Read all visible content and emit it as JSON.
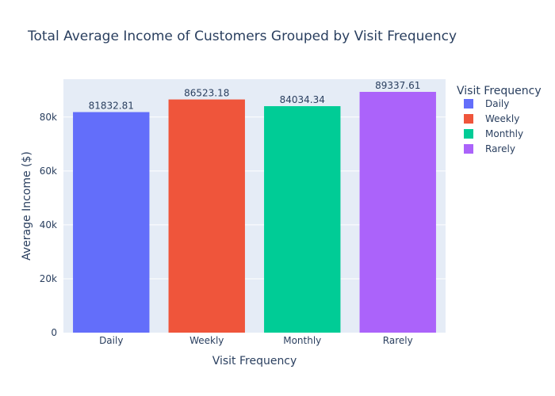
{
  "chart_data": {
    "type": "bar",
    "title": "Total Average Income of Customers Grouped by Visit Frequency",
    "xlabel": "Visit Frequency",
    "ylabel": "Average Income ($)",
    "categories": [
      "Daily",
      "Weekly",
      "Monthly",
      "Rarely"
    ],
    "values": [
      81832.81,
      86523.18,
      84034.34,
      89337.61
    ],
    "data_labels": [
      "81832.81",
      "86523.18",
      "84034.34",
      "89337.61"
    ],
    "colors": [
      "#636efa",
      "#EF553B",
      "#00cc96",
      "#ab63fa"
    ],
    "ylim": [
      0,
      94040
    ],
    "yticks": [
      0,
      20000,
      40000,
      60000,
      80000
    ],
    "ytick_labels": [
      "0",
      "20k",
      "40k",
      "60k",
      "80k"
    ],
    "grid": true,
    "legend": {
      "title": "Visit Frequency",
      "position": "right",
      "entries": [
        "Daily",
        "Weekly",
        "Monthly",
        "Rarely"
      ]
    }
  }
}
